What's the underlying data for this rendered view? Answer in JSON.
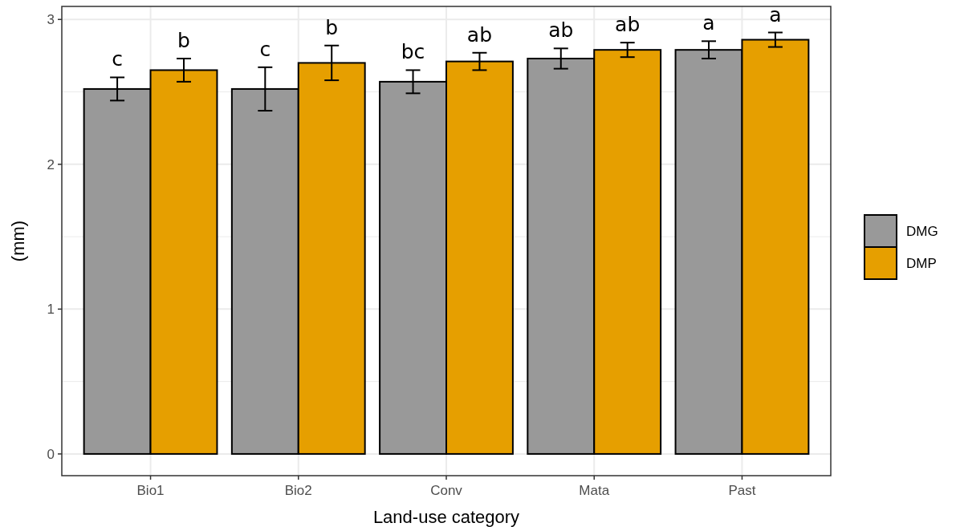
{
  "chart_data": {
    "type": "bar",
    "xlabel": "Land-use category",
    "ylabel": "(mm)",
    "categories": [
      "Bio1",
      "Bio2",
      "Conv",
      "Mata",
      "Past"
    ],
    "series": [
      {
        "name": "DMG",
        "color": "#999999",
        "values": [
          2.52,
          2.52,
          2.57,
          2.73,
          2.79
        ],
        "errors": [
          0.08,
          0.15,
          0.08,
          0.07,
          0.06
        ],
        "value_labels": [
          "c",
          "c",
          "bc",
          "ab",
          "a"
        ]
      },
      {
        "name": "DMP",
        "color": "#e69f00",
        "values": [
          2.65,
          2.7,
          2.71,
          2.79,
          2.86
        ],
        "errors": [
          0.08,
          0.12,
          0.06,
          0.05,
          0.05
        ],
        "value_labels": [
          "b",
          "b",
          "ab",
          "ab",
          "a"
        ]
      }
    ],
    "ylim": [
      -0.15,
      3.09
    ],
    "yticks": [
      0,
      1,
      2,
      3
    ],
    "grid": true,
    "legend": "right"
  }
}
